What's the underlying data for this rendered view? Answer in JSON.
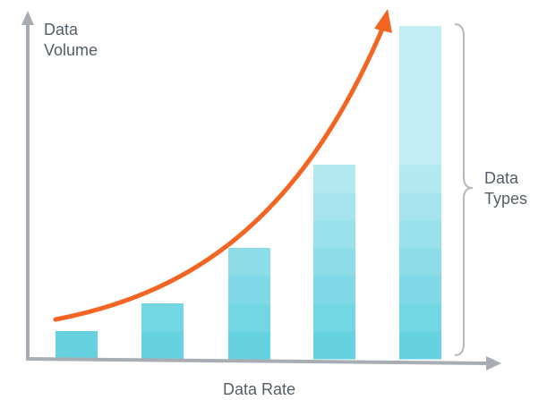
{
  "diagram": {
    "y_axis_label_line1": "Data",
    "y_axis_label_line2": "Volume",
    "x_axis_label": "Data Rate",
    "brace_label_line1": "Data",
    "brace_label_line2": "Types"
  },
  "colors": {
    "axis": "#a7adb3",
    "text": "#555e68",
    "growth_arrow": "#f26522",
    "bar_shades": [
      "#66d2e0",
      "#72d6e3",
      "#7fd9e6",
      "#8cdde8",
      "#99e1eb",
      "#a6e5ed",
      "#b3e9f0",
      "#c2edf3"
    ],
    "brace": "#b4b9be"
  },
  "bars": [
    {
      "segments": 1
    },
    {
      "segments": 2
    },
    {
      "segments": 4
    },
    {
      "segments": 7
    },
    {
      "segments": 12
    }
  ]
}
